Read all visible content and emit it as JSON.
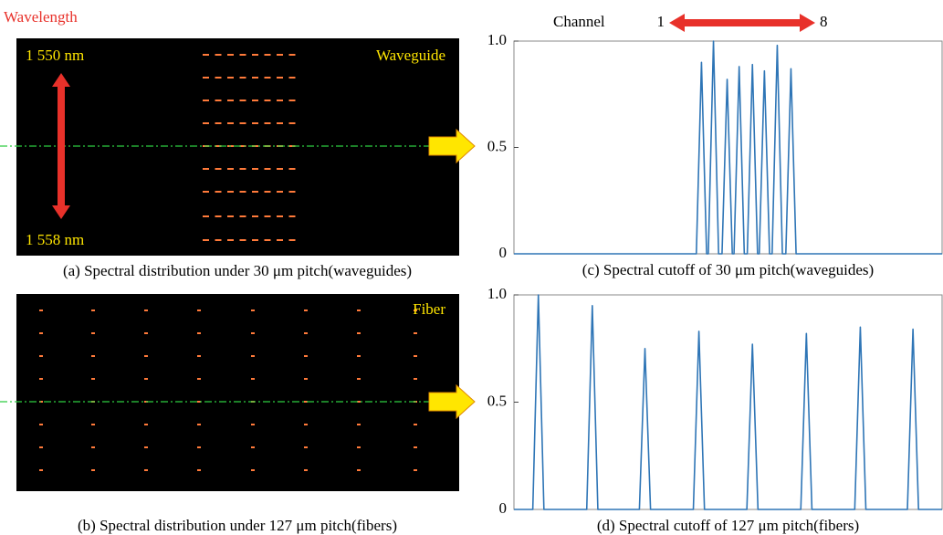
{
  "labels": {
    "wavelength": "Wavelength",
    "wl_top": "1 550 nm",
    "wl_bottom": "1 558 nm",
    "waveguide": "Waveguide",
    "fiber": "Fiber",
    "caption_a": "(a) Spectral distribution under 30 μm pitch(waveguides)",
    "caption_b": "(b) Spectral distribution under 127 μm pitch(fibers)",
    "channel": "Channel",
    "channel_first": "1",
    "channel_last": "8"
  },
  "chart_data": [
    {
      "type": "line",
      "title": "(c) Spectral cutoff of 30 μm pitch(waveguides)",
      "color": "#2e75b6",
      "x": [
        0,
        42.6,
        43.8,
        45.0,
        45.4,
        46.6,
        47.8,
        48.6,
        49.8,
        51.0,
        51.4,
        52.6,
        53.8,
        54.5,
        55.7,
        56.9,
        57.3,
        58.5,
        59.7,
        60.3,
        61.5,
        62.7,
        63.5,
        64.7,
        65.9,
        100
      ],
      "values": [
        0,
        0,
        0.9,
        0,
        0,
        1.0,
        0,
        0,
        0.82,
        0,
        0,
        0.88,
        0,
        0,
        0.89,
        0,
        0,
        0.86,
        0,
        0,
        0.98,
        0,
        0,
        0.87,
        0,
        0
      ],
      "xlim": [
        0,
        100
      ],
      "ylim": [
        0,
        1
      ],
      "yticks": [
        0,
        0.5,
        {
          "value": 1,
          "label": "1.0"
        }
      ]
    },
    {
      "type": "line",
      "title": "(d) Spectral cutoff of 127 μm pitch(fibers)",
      "color": "#2e75b6",
      "x": [
        0,
        4.4,
        5.7,
        7.0,
        17.0,
        18.3,
        19.6,
        29.3,
        30.6,
        31.9,
        41.9,
        43.2,
        44.5,
        54.4,
        55.7,
        57.0,
        67.0,
        68.3,
        69.6,
        79.6,
        80.9,
        82.2,
        91.9,
        93.2,
        94.5,
        100
      ],
      "values": [
        0,
        0,
        1.0,
        0,
        0,
        0.95,
        0,
        0,
        0.75,
        0,
        0,
        0.83,
        0,
        0,
        0.77,
        0,
        0,
        0.82,
        0,
        0,
        0.85,
        0,
        0,
        0.84,
        0,
        0
      ],
      "xlim": [
        0,
        100
      ],
      "ylim": [
        0,
        1
      ],
      "yticks": [
        0,
        0.5,
        {
          "value": 1,
          "label": "1.0"
        }
      ]
    }
  ]
}
